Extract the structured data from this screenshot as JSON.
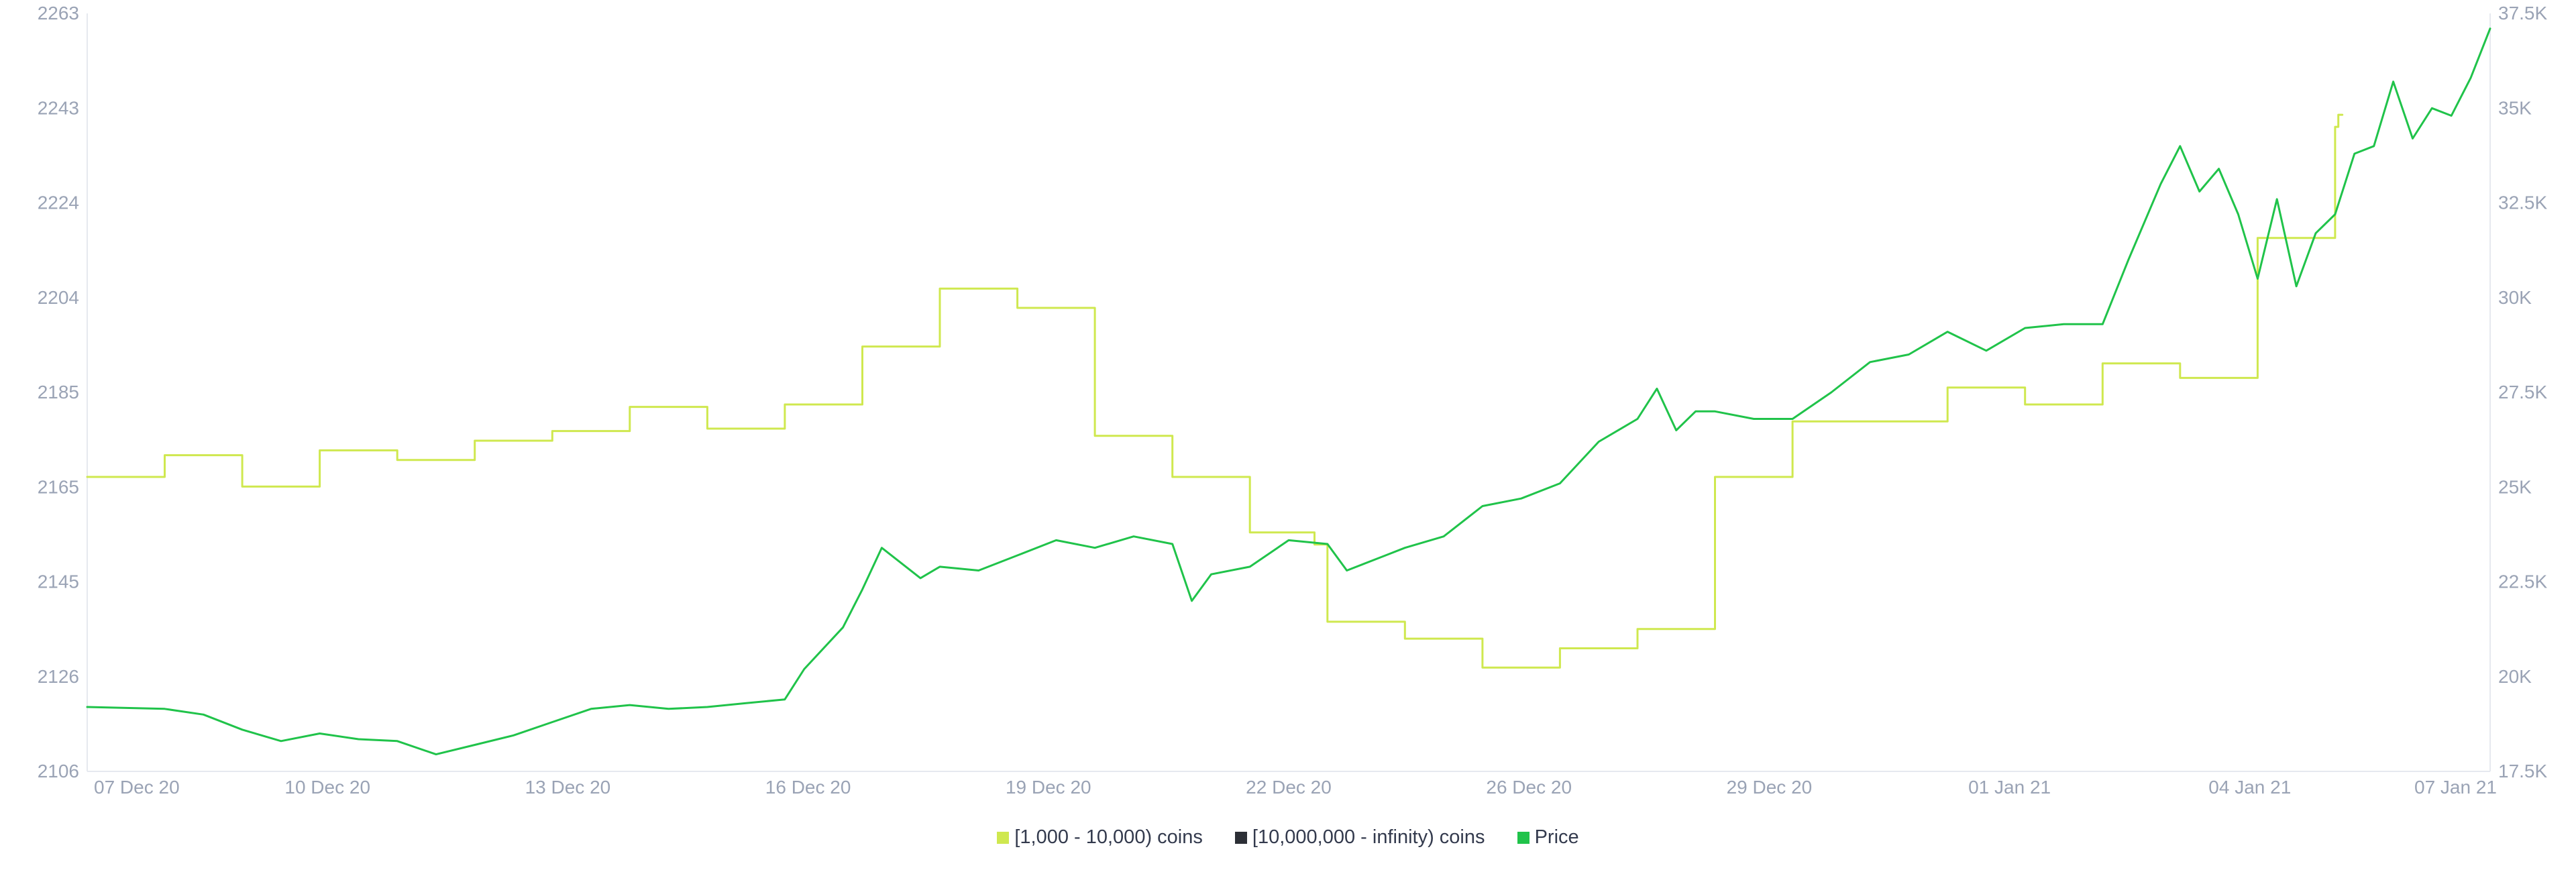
{
  "chart_data": {
    "type": "line",
    "title": "",
    "x_ticks": [
      "07 Dec 20",
      "10 Dec 20",
      "13 Dec 20",
      "16 Dec 20",
      "19 Dec 20",
      "22 Dec 20",
      "26 Dec 20",
      "29 Dec 20",
      "01 Jan 21",
      "04 Jan 21",
      "07 Jan 21"
    ],
    "x_range": [
      "2020-12-07",
      "2021-01-07"
    ],
    "y_left": {
      "ticks": [
        "2263",
        "2243",
        "2224",
        "2204",
        "2185",
        "2165",
        "2145",
        "2126",
        "2106"
      ],
      "range": [
        2106,
        2263
      ]
    },
    "y_right": {
      "ticks": [
        "37.5K",
        "35K",
        "32.5K",
        "30K",
        "27.5K",
        "25K",
        "22.5K",
        "20K",
        "17.5K"
      ],
      "range": [
        17500,
        37500
      ]
    },
    "grid": false,
    "legend_position": "bottom-center",
    "series": [
      {
        "name": "[1,000 - 10,000) coins",
        "axis": "left",
        "color": "#cfe84f",
        "step": true,
        "points": [
          [
            "2020-12-07",
            2167.0
          ],
          [
            "2020-12-08",
            2171.5
          ],
          [
            "2020-12-09",
            2165.0
          ],
          [
            "2020-12-10",
            2172.5
          ],
          [
            "2020-12-11",
            2170.5
          ],
          [
            "2020-12-12",
            2174.5
          ],
          [
            "2020-12-13",
            2176.5
          ],
          [
            "2020-12-14",
            2181.5
          ],
          [
            "2020-12-15",
            2177.0
          ],
          [
            "2020-12-16",
            2182.0
          ],
          [
            "2020-12-17",
            2194.0
          ],
          [
            "2020-12-18",
            2206.0
          ],
          [
            "2020-12-19",
            2202.0
          ],
          [
            "2020-12-20",
            2175.5
          ],
          [
            "2020-12-21",
            2167.0
          ],
          [
            "2020-12-22",
            2155.5
          ],
          [
            "2020-12-22T20:00",
            2153.0
          ],
          [
            "2020-12-23",
            2137.0
          ],
          [
            "2020-12-24",
            2133.5
          ],
          [
            "2020-12-25",
            2127.5
          ],
          [
            "2020-12-26",
            2131.5
          ],
          [
            "2020-12-27",
            2135.5
          ],
          [
            "2020-12-28",
            2167.0
          ],
          [
            "2020-12-29",
            2178.5
          ],
          [
            "2020-12-31",
            2185.5
          ],
          [
            "2021-01-01",
            2182.0
          ],
          [
            "2021-01-02",
            2190.5
          ],
          [
            "2021-01-03",
            2187.5
          ],
          [
            "2021-01-04",
            2216.5
          ],
          [
            "2021-01-05",
            2239.5
          ],
          [
            "2021-01-05T01:00",
            2242.0
          ]
        ]
      },
      {
        "name": "[10,000,000 - infinity) coins",
        "axis": "left",
        "color": "#2c2f36",
        "points": []
      },
      {
        "name": "Price",
        "axis": "right",
        "color": "#20c34a",
        "points": [
          [
            "2020-12-07",
            19200
          ],
          [
            "2020-12-08",
            19150
          ],
          [
            "2020-12-08T12:00",
            19000
          ],
          [
            "2020-12-09",
            18600
          ],
          [
            "2020-12-09T12:00",
            18300
          ],
          [
            "2020-12-10",
            18500
          ],
          [
            "2020-12-10T12:00",
            18350
          ],
          [
            "2020-12-11",
            18300
          ],
          [
            "2020-12-11T12:00",
            17950
          ],
          [
            "2020-12-12",
            18200
          ],
          [
            "2020-12-12T12:00",
            18450
          ],
          [
            "2020-12-13",
            18800
          ],
          [
            "2020-12-13T12:00",
            19150
          ],
          [
            "2020-12-14",
            19250
          ],
          [
            "2020-12-14T12:00",
            19150
          ],
          [
            "2020-12-15",
            19200
          ],
          [
            "2020-12-15T12:00",
            19300
          ],
          [
            "2020-12-16",
            19400
          ],
          [
            "2020-12-16T06:00",
            20200
          ],
          [
            "2020-12-16T18:00",
            21300
          ],
          [
            "2020-12-17",
            22300
          ],
          [
            "2020-12-17T06:00",
            23400
          ],
          [
            "2020-12-17T18:00",
            22600
          ],
          [
            "2020-12-18",
            22900
          ],
          [
            "2020-12-18T12:00",
            22800
          ],
          [
            "2020-12-19",
            23200
          ],
          [
            "2020-12-19T12:00",
            23600
          ],
          [
            "2020-12-20",
            23400
          ],
          [
            "2020-12-20T12:00",
            23700
          ],
          [
            "2020-12-21",
            23500
          ],
          [
            "2020-12-21T06:00",
            22000
          ],
          [
            "2020-12-21T12:00",
            22700
          ],
          [
            "2020-12-22",
            22900
          ],
          [
            "2020-12-22T12:00",
            23600
          ],
          [
            "2020-12-23",
            23500
          ],
          [
            "2020-12-23T06:00",
            22800
          ],
          [
            "2020-12-23T18:00",
            23200
          ],
          [
            "2020-12-24",
            23400
          ],
          [
            "2020-12-24T12:00",
            23700
          ],
          [
            "2020-12-25",
            24500
          ],
          [
            "2020-12-25T12:00",
            24700
          ],
          [
            "2020-12-26",
            25100
          ],
          [
            "2020-12-26T12:00",
            26200
          ],
          [
            "2020-12-27",
            26800
          ],
          [
            "2020-12-27T06:00",
            27600
          ],
          [
            "2020-12-27T12:00",
            26500
          ],
          [
            "2020-12-27T18:00",
            27000
          ],
          [
            "2020-12-28",
            27000
          ],
          [
            "2020-12-28T12:00",
            26800
          ],
          [
            "2020-12-29",
            26800
          ],
          [
            "2020-12-29T12:00",
            27500
          ],
          [
            "2020-12-30",
            28300
          ],
          [
            "2020-12-30T12:00",
            28500
          ],
          [
            "2020-12-31",
            29100
          ],
          [
            "2020-12-31T12:00",
            28600
          ],
          [
            "2021-01-01",
            29200
          ],
          [
            "2021-01-01T12:00",
            29300
          ],
          [
            "2021-01-02",
            29300
          ],
          [
            "2021-01-02T08:00",
            31000
          ],
          [
            "2021-01-02T18:00",
            33000
          ],
          [
            "2021-01-03",
            34000
          ],
          [
            "2021-01-03T06:00",
            32800
          ],
          [
            "2021-01-03T12:00",
            33400
          ],
          [
            "2021-01-03T18:00",
            32200
          ],
          [
            "2021-01-04",
            30500
          ],
          [
            "2021-01-04T06:00",
            32600
          ],
          [
            "2021-01-04T12:00",
            30300
          ],
          [
            "2021-01-04T18:00",
            31700
          ],
          [
            "2021-01-05",
            32200
          ],
          [
            "2021-01-05T06:00",
            33800
          ],
          [
            "2021-01-05T12:00",
            34000
          ],
          [
            "2021-01-05T18:00",
            35700
          ],
          [
            "2021-01-06",
            34200
          ],
          [
            "2021-01-06T06:00",
            35000
          ],
          [
            "2021-01-06T12:00",
            34800
          ],
          [
            "2021-01-06T18:00",
            35800
          ],
          [
            "2021-01-07",
            37100
          ]
        ]
      }
    ]
  }
}
